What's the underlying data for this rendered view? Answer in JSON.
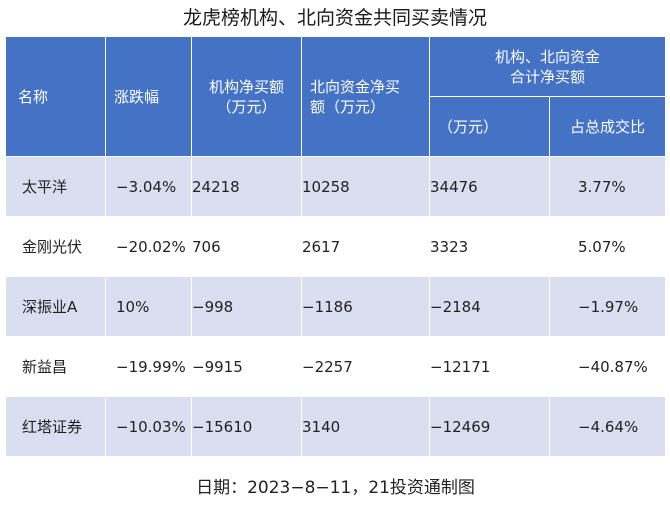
{
  "title": "龙虎榜机构、北向资金共同买卖情况",
  "headers": {
    "name": "名称",
    "change": "涨跌幅",
    "inst": "机构净买额\n（万元）",
    "north": "北向资金净买\n额（万元）",
    "combined": "机构、北向资金\n合计净买额",
    "combined_unit": "（万元）",
    "ratio": "占总成交比"
  },
  "rows": [
    {
      "name": "太平洋",
      "change": "−3.04%",
      "inst": "24218",
      "north": "10258",
      "combined": "34476",
      "ratio": "3.77%"
    },
    {
      "name": "金刚光伏",
      "change": "−20.02%",
      "inst": "706",
      "north": "2617",
      "combined": "3323",
      "ratio": "5.07%"
    },
    {
      "name": "深振业A",
      "change": "10%",
      "inst": "−998",
      "north": "−1186",
      "combined": "−2184",
      "ratio": "−1.97%"
    },
    {
      "name": "新益昌",
      "change": "−19.99%",
      "inst": "−9915",
      "north": "−2257",
      "combined": "−12171",
      "ratio": "−40.87%"
    },
    {
      "name": "红塔证券",
      "change": "−10.03%",
      "inst": "−15610",
      "north": "3140",
      "combined": "−12469",
      "ratio": "−4.64%"
    }
  ],
  "footer": "日期：2023−8−11，21投资通制图",
  "colors": {
    "header_bg": "#4472c4",
    "stripe": "#d9dff0"
  }
}
